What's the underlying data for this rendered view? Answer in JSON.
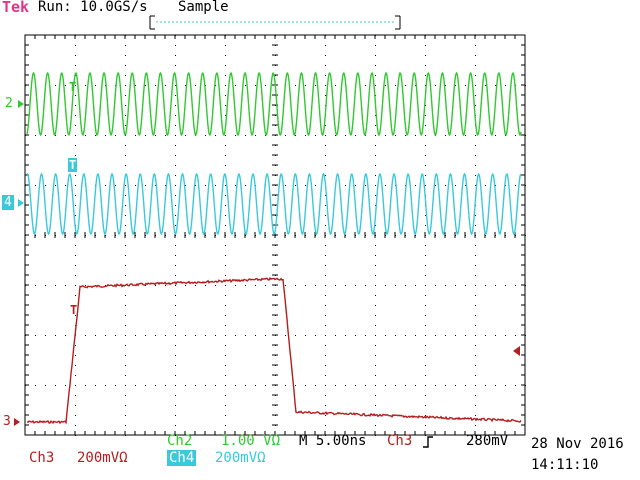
{
  "header": {
    "brand": "Tek",
    "run_status": "Run: 10.0GS/s",
    "acq_mode": "Sample"
  },
  "channels": {
    "ch2": {
      "marker": "2",
      "label": "Ch2",
      "scale": "1.00 VΩ"
    },
    "ch4": {
      "marker": "4",
      "label": "Ch4",
      "scale": "200mVΩ"
    },
    "ch3": {
      "marker": "3",
      "label": "Ch3",
      "scale": "200mVΩ"
    }
  },
  "timebase": {
    "label": "M 5.00ns"
  },
  "trigger": {
    "source": "Ch3",
    "level": "280mV",
    "marker": "T"
  },
  "timestamp": {
    "date": "28 Nov 2016",
    "time": "14:11:10"
  },
  "colors": {
    "ch2": "#31c831",
    "ch4": "#39c9dd",
    "ch3": "#b41e1e",
    "brand": "#e0348c",
    "graticule": "#000000"
  }
}
